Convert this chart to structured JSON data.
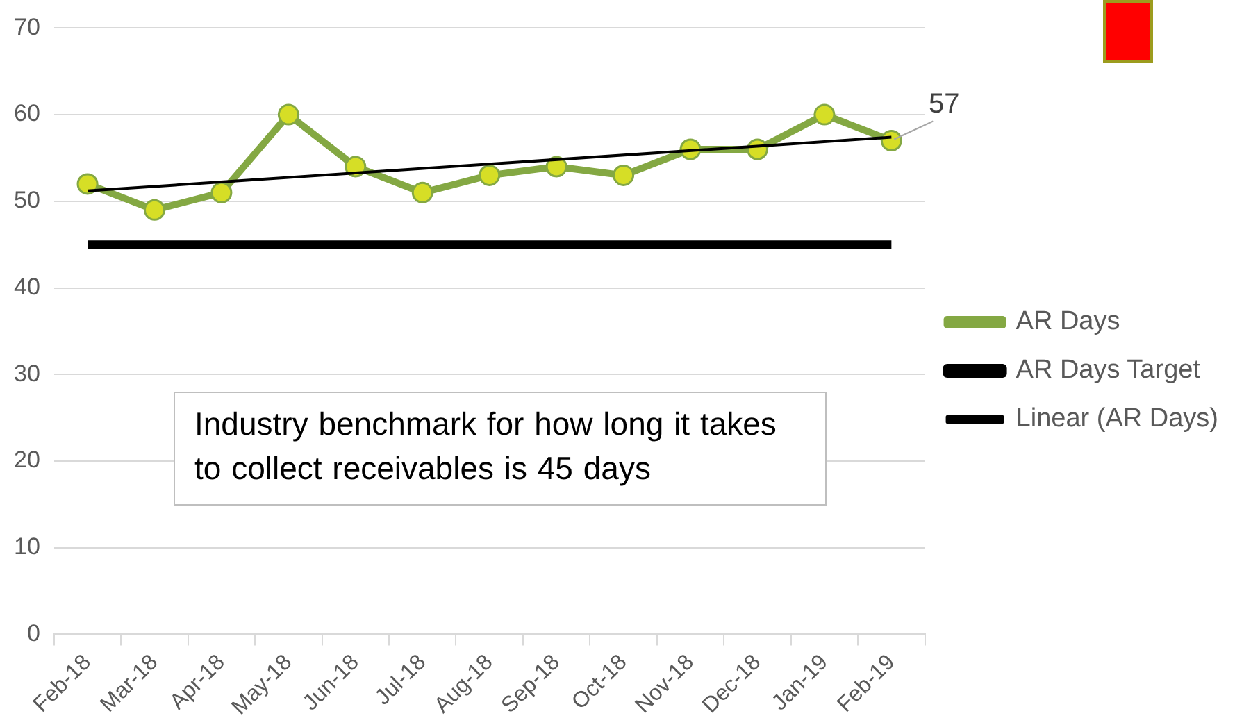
{
  "chart_data": {
    "type": "line",
    "categories": [
      "Feb-18",
      "Mar-18",
      "Apr-18",
      "May-18",
      "Jun-18",
      "Jul-18",
      "Aug-18",
      "Sep-18",
      "Oct-18",
      "Nov-18",
      "Dec-18",
      "Jan-19",
      "Feb-19"
    ],
    "series": [
      {
        "name": "AR Days",
        "color": "#84a843",
        "values": [
          52,
          49,
          51,
          60,
          54,
          51,
          53,
          54,
          53,
          56,
          56,
          60,
          57
        ],
        "value_labels": [
          null,
          null,
          null,
          null,
          null,
          null,
          null,
          null,
          null,
          null,
          null,
          null,
          "57"
        ]
      },
      {
        "name": "AR Days Target",
        "color": "#000000",
        "values": [
          45,
          45,
          45,
          45,
          45,
          45,
          45,
          45,
          45,
          45,
          45,
          45,
          45
        ],
        "marker": "none"
      },
      {
        "name": "Linear (AR Days)",
        "color": "#000000",
        "type": "line",
        "x": [
          "Feb-18",
          "Feb-19"
        ],
        "values": [
          51.2,
          57.4
        ],
        "marker": "none"
      }
    ],
    "ylim": [
      0,
      70
    ],
    "yticks": [
      0,
      10,
      20,
      30,
      40,
      50,
      60,
      70
    ],
    "grid": "y",
    "legend": "right",
    "marker": "circle",
    "line_style": "solid",
    "annotations": [
      "Industry benchmark for how long it takes to collect receivables is 45 days"
    ]
  }
}
